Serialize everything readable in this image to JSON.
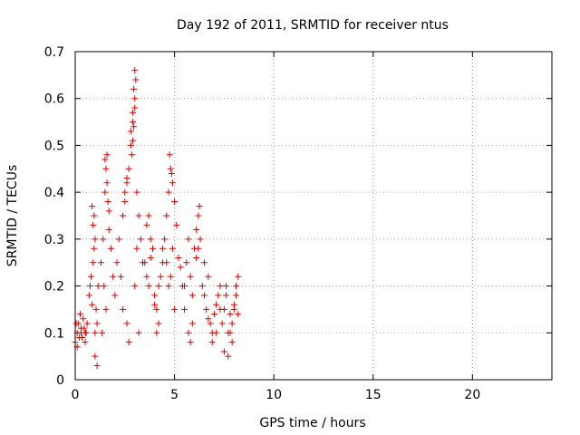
{
  "chart_data": {
    "type": "scatter",
    "title": "Day 192 of 2011, SRMTID for receiver ntus",
    "xlabel": "GPS time / hours",
    "ylabel": "SRMTID / TECUs",
    "xlim": [
      0,
      24
    ],
    "ylim": [
      0,
      0.7
    ],
    "xticks": [
      0,
      5,
      10,
      15,
      20
    ],
    "yticks": [
      0,
      0.1,
      0.2,
      0.3,
      0.4,
      0.5,
      0.6,
      0.7
    ],
    "xtick_labels": [
      "0",
      "5",
      "10",
      "15",
      "20"
    ],
    "ytick_labels": [
      "0",
      "0.1",
      "0.2",
      "0.3",
      "0.4",
      "0.5",
      "0.6",
      "0.7"
    ],
    "grid": true,
    "marker": "plus",
    "color": "#e00000",
    "series": [
      {
        "name": "SRMTID",
        "x": [
          0.0,
          0.1,
          0.15,
          0.2,
          0.3,
          0.4,
          0.5,
          0.6,
          0.1,
          0.25,
          0.35,
          0.45,
          0.55,
          0.05,
          0.3,
          0.5,
          0.7,
          0.75,
          0.8,
          0.85,
          0.9,
          0.95,
          1.0,
          1.05,
          1.1,
          1.15,
          0.85,
          0.95,
          1.0,
          1.1,
          0.9,
          1.0,
          1.3,
          1.4,
          1.5,
          1.55,
          1.6,
          1.65,
          1.7,
          1.8,
          1.9,
          2.0,
          1.5,
          1.6,
          1.7,
          1.45,
          1.55,
          1.35,
          2.1,
          2.2,
          2.3,
          2.4,
          2.5,
          2.6,
          2.7,
          2.8,
          2.9,
          3.0,
          2.5,
          2.6,
          2.8,
          2.9,
          2.95,
          3.0,
          3.05,
          2.85,
          2.9,
          3.0,
          2.95,
          3.1,
          3.2,
          3.3,
          3.4,
          2.4,
          2.6,
          3.0,
          3.2,
          2.7,
          3.1,
          3.5,
          3.6,
          3.7,
          3.8,
          3.9,
          4.0,
          4.1,
          4.2,
          4.3,
          4.4,
          3.6,
          3.8,
          4.0,
          4.2,
          4.4,
          3.7,
          4.1,
          4.5,
          4.6,
          4.7,
          4.8,
          4.9,
          5.0,
          4.6,
          4.7,
          4.8,
          4.9,
          5.1,
          5.2,
          5.3,
          5.4,
          4.75,
          4.85,
          5.0,
          5.5,
          5.6,
          5.7,
          5.8,
          5.9,
          6.0,
          6.1,
          6.2,
          6.3,
          5.7,
          5.9,
          6.1,
          6.25,
          6.2,
          5.5,
          5.8,
          6.4,
          6.5,
          6.6,
          6.7,
          6.8,
          6.9,
          7.0,
          7.1,
          7.2,
          7.3,
          6.5,
          6.7,
          6.9,
          7.1,
          7.3,
          7.4,
          7.5,
          7.6,
          7.7,
          7.8,
          7.9,
          8.0,
          8.1,
          8.2,
          7.5,
          7.7,
          7.9,
          8.1,
          7.6,
          7.8,
          8.0,
          8.2
        ],
        "y": [
          0.08,
          0.1,
          0.12,
          0.09,
          0.11,
          0.13,
          0.1,
          0.12,
          0.07,
          0.14,
          0.09,
          0.11,
          0.1,
          0.12,
          0.1,
          0.08,
          0.18,
          0.2,
          0.22,
          0.16,
          0.25,
          0.28,
          0.3,
          0.15,
          0.12,
          0.2,
          0.37,
          0.35,
          0.05,
          0.03,
          0.33,
          0.1,
          0.25,
          0.3,
          0.4,
          0.45,
          0.48,
          0.38,
          0.32,
          0.28,
          0.22,
          0.18,
          0.47,
          0.42,
          0.36,
          0.2,
          0.15,
          0.1,
          0.25,
          0.3,
          0.22,
          0.35,
          0.4,
          0.42,
          0.45,
          0.5,
          0.55,
          0.6,
          0.38,
          0.43,
          0.53,
          0.57,
          0.62,
          0.66,
          0.64,
          0.48,
          0.51,
          0.58,
          0.54,
          0.4,
          0.35,
          0.3,
          0.25,
          0.15,
          0.12,
          0.2,
          0.1,
          0.08,
          0.28,
          0.25,
          0.22,
          0.2,
          0.3,
          0.28,
          0.18,
          0.15,
          0.12,
          0.22,
          0.25,
          0.33,
          0.26,
          0.16,
          0.2,
          0.28,
          0.35,
          0.1,
          0.3,
          0.35,
          0.4,
          0.45,
          0.42,
          0.38,
          0.25,
          0.2,
          0.22,
          0.28,
          0.33,
          0.26,
          0.24,
          0.2,
          0.48,
          0.44,
          0.15,
          0.2,
          0.25,
          0.3,
          0.22,
          0.18,
          0.28,
          0.32,
          0.35,
          0.3,
          0.1,
          0.12,
          0.26,
          0.37,
          0.28,
          0.15,
          0.08,
          0.2,
          0.18,
          0.15,
          0.22,
          0.12,
          0.1,
          0.14,
          0.16,
          0.18,
          0.2,
          0.25,
          0.13,
          0.08,
          0.1,
          0.15,
          0.12,
          0.15,
          0.18,
          0.1,
          0.14,
          0.08,
          0.16,
          0.2,
          0.22,
          0.06,
          0.05,
          0.12,
          0.18,
          0.2,
          0.1,
          0.15,
          0.14
        ]
      }
    ]
  }
}
